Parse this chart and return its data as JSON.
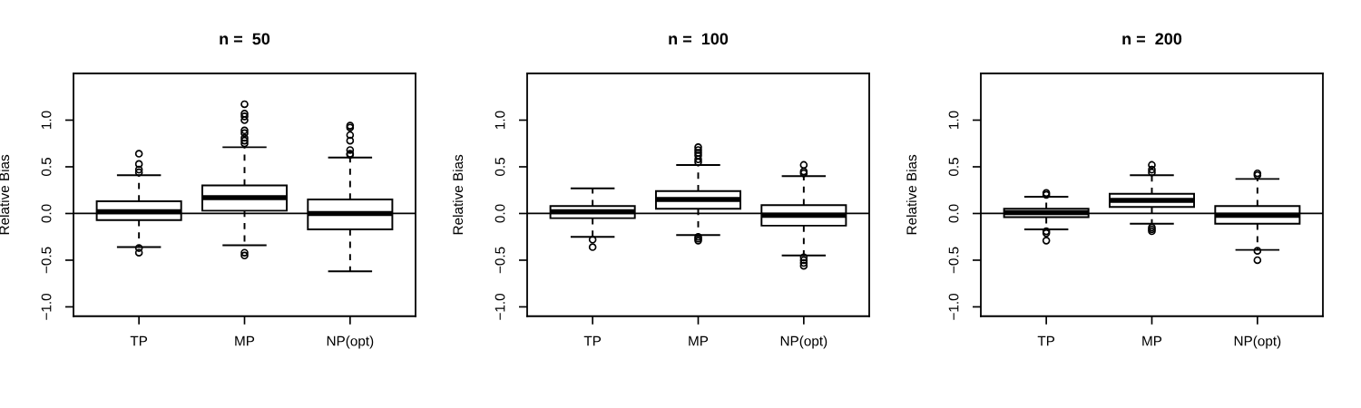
{
  "chart_data": [
    {
      "type": "box",
      "title": "n =  50",
      "ylabel": "Relative Bias",
      "categories": [
        "TP",
        "MP",
        "NP(opt)"
      ],
      "boxes": [
        {
          "low": -0.36,
          "q1": -0.07,
          "median": 0.02,
          "q3": 0.13,
          "high": 0.41,
          "outliers": [
            0.64,
            0.53,
            0.47,
            0.44,
            -0.37,
            -0.42
          ]
        },
        {
          "low": -0.34,
          "q1": 0.03,
          "median": 0.17,
          "q3": 0.3,
          "high": 0.71,
          "outliers": [
            1.17,
            1.07,
            1.04,
            1.0,
            0.89,
            0.86,
            0.81,
            0.78,
            0.75,
            -0.42,
            -0.45
          ]
        },
        {
          "low": -0.62,
          "q1": -0.17,
          "median": 0.0,
          "q3": 0.15,
          "high": 0.6,
          "outliers": [
            0.94,
            0.92,
            0.84,
            0.78,
            0.68,
            0.64,
            0.63
          ]
        }
      ],
      "ylim": [
        -1.1,
        1.5
      ],
      "yticks": [
        {
          "value": -1,
          "label": "−1.0"
        },
        {
          "value": -0.5,
          "label": "−0.5"
        },
        {
          "value": 0,
          "label": "0.0"
        },
        {
          "value": 0.5,
          "label": "0.5"
        },
        {
          "value": 1,
          "label": "1.0"
        }
      ],
      "ref_lines": [
        {
          "axis": "y",
          "value": 0,
          "color": "#000000"
        }
      ]
    },
    {
      "type": "box",
      "title": "n =  100",
      "ylabel": "Relative Bias",
      "categories": [
        "TP",
        "MP",
        "NP(opt)"
      ],
      "boxes": [
        {
          "low": -0.25,
          "q1": -0.05,
          "median": 0.02,
          "q3": 0.08,
          "high": 0.27,
          "outliers": [
            -0.28,
            -0.36
          ]
        },
        {
          "low": -0.23,
          "q1": 0.05,
          "median": 0.15,
          "q3": 0.24,
          "high": 0.52,
          "outliers": [
            0.71,
            0.68,
            0.65,
            0.62,
            0.58,
            0.55,
            -0.25,
            -0.27,
            -0.29
          ]
        },
        {
          "low": -0.45,
          "q1": -0.13,
          "median": -0.02,
          "q3": 0.09,
          "high": 0.4,
          "outliers": [
            0.52,
            0.45,
            0.43,
            -0.47,
            -0.5,
            -0.53,
            -0.56
          ]
        }
      ],
      "ylim": [
        -1.1,
        1.5
      ],
      "yticks": [
        {
          "value": -1,
          "label": "−1.0"
        },
        {
          "value": -0.5,
          "label": "−0.5"
        },
        {
          "value": 0,
          "label": "0.0"
        },
        {
          "value": 0.5,
          "label": "0.5"
        },
        {
          "value": 1,
          "label": "1.0"
        }
      ],
      "ref_lines": [
        {
          "axis": "y",
          "value": 0,
          "color": "#000000"
        }
      ]
    },
    {
      "type": "box",
      "title": "n =  200",
      "ylabel": "Relative Bias",
      "categories": [
        "TP",
        "MP",
        "NP(opt)"
      ],
      "boxes": [
        {
          "low": -0.17,
          "q1": -0.04,
          "median": 0.01,
          "q3": 0.05,
          "high": 0.18,
          "outliers": [
            0.22,
            0.2,
            -0.19,
            -0.21,
            -0.29
          ]
        },
        {
          "low": -0.11,
          "q1": 0.07,
          "median": 0.14,
          "q3": 0.21,
          "high": 0.41,
          "outliers": [
            0.52,
            0.47,
            0.44,
            -0.15,
            -0.17,
            -0.19
          ]
        },
        {
          "low": -0.39,
          "q1": -0.11,
          "median": -0.02,
          "q3": 0.08,
          "high": 0.37,
          "outliers": [
            0.43,
            0.41,
            -0.4,
            -0.5
          ]
        }
      ],
      "ylim": [
        -1.1,
        1.5
      ],
      "yticks": [
        {
          "value": -1,
          "label": "−1.0"
        },
        {
          "value": -0.5,
          "label": "−0.5"
        },
        {
          "value": 0,
          "label": "0.0"
        },
        {
          "value": 0.5,
          "label": "0.5"
        },
        {
          "value": 1,
          "label": "1.0"
        }
      ],
      "ref_lines": [
        {
          "axis": "y",
          "value": 0,
          "color": "#000000"
        }
      ]
    }
  ]
}
